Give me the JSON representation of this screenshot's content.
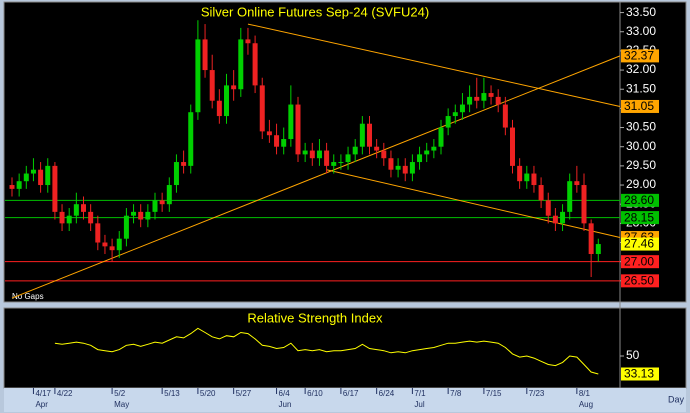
{
  "chart_data": [
    {
      "type": "candlestick",
      "title": "Silver Online Futures Sep-24 (SVFU24)",
      "categories": [
        null,
        null,
        null,
        "4/17",
        null,
        null,
        "4/22",
        null,
        null,
        null,
        null,
        null,
        null,
        null,
        "5/2",
        null,
        null,
        null,
        null,
        null,
        null,
        "5/13",
        null,
        null,
        null,
        null,
        "5/20",
        null,
        null,
        null,
        null,
        "5/27",
        null,
        null,
        null,
        null,
        null,
        "6/4",
        null,
        null,
        null,
        "6/10",
        null,
        null,
        null,
        null,
        "6/17",
        null,
        null,
        null,
        null,
        "6/24",
        null,
        null,
        null,
        null,
        "7/1",
        null,
        null,
        null,
        null,
        "7/8",
        null,
        null,
        null,
        null,
        "7/15",
        null,
        null,
        null,
        null,
        null,
        "7/23",
        null,
        null,
        null,
        null,
        null,
        null,
        "8/1",
        null,
        null,
        null
      ],
      "months": [
        null,
        null,
        null,
        "Apr",
        null,
        null,
        null,
        null,
        null,
        null,
        null,
        null,
        null,
        null,
        "May",
        null,
        null,
        null,
        null,
        null,
        null,
        null,
        null,
        null,
        null,
        null,
        null,
        null,
        null,
        null,
        null,
        null,
        null,
        null,
        null,
        null,
        null,
        "Jun",
        null,
        null,
        null,
        null,
        null,
        null,
        null,
        null,
        null,
        null,
        null,
        null,
        null,
        null,
        null,
        null,
        null,
        null,
        "Jul",
        null,
        null,
        null,
        null,
        null,
        null,
        null,
        null,
        null,
        null,
        null,
        null,
        null,
        null,
        null,
        null,
        null,
        null,
        null,
        null,
        null,
        null,
        "Aug",
        null,
        null,
        null
      ],
      "open": [
        29.0,
        28.9,
        29.1,
        29.3,
        29.4,
        29.0,
        29.5,
        28.3,
        28.0,
        28.2,
        28.5,
        28.3,
        28.0,
        27.5,
        27.4,
        27.3,
        27.6,
        28.2,
        28.3,
        28.1,
        28.3,
        28.6,
        28.5,
        29.0,
        29.6,
        29.5,
        30.9,
        32.8,
        32.0,
        31.2,
        30.8,
        31.6,
        31.5,
        32.8,
        32.7,
        31.6,
        30.4,
        30.3,
        30.0,
        30.2,
        31.1,
        29.8,
        29.9,
        29.7,
        29.9,
        29.5,
        29.6,
        29.6,
        29.8,
        30.0,
        30.6,
        30.0,
        29.9,
        29.7,
        29.4,
        29.5,
        29.3,
        29.6,
        29.8,
        29.9,
        30.0,
        30.5,
        30.8,
        30.9,
        31.1,
        31.3,
        31.2,
        31.4,
        31.3,
        31.1,
        30.5,
        29.5,
        29.1,
        29.3,
        29.0,
        28.6,
        28.2,
        28.0,
        28.3,
        29.1,
        29.0,
        28.0,
        27.2
      ],
      "high": [
        29.2,
        29.3,
        29.5,
        29.7,
        29.6,
        29.7,
        29.6,
        28.5,
        28.4,
        28.8,
        28.7,
        28.5,
        28.2,
        27.7,
        27.6,
        27.8,
        28.4,
        28.5,
        28.5,
        28.5,
        28.8,
        28.8,
        29.2,
        29.8,
        29.9,
        31.1,
        33.3,
        33.2,
        32.4,
        31.5,
        31.9,
        32.0,
        33.1,
        33.1,
        32.9,
        31.8,
        30.7,
        30.6,
        30.5,
        31.6,
        31.3,
        30.1,
        30.1,
        30.2,
        30.1,
        29.8,
        29.8,
        30.0,
        30.2,
        30.8,
        30.8,
        30.2,
        30.1,
        29.9,
        29.7,
        29.7,
        29.8,
        30.0,
        30.1,
        30.2,
        30.7,
        31.0,
        31.1,
        31.4,
        31.6,
        31.8,
        31.8,
        31.6,
        31.5,
        31.3,
        30.7,
        29.7,
        29.5,
        29.5,
        29.2,
        28.8,
        28.4,
        28.5,
        29.3,
        29.5,
        29.3,
        28.1,
        27.6
      ],
      "low": [
        28.7,
        28.7,
        28.9,
        29.1,
        28.8,
        28.8,
        28.1,
        27.8,
        27.8,
        28.0,
        28.1,
        27.8,
        27.3,
        27.2,
        27.0,
        27.1,
        27.4,
        28.0,
        27.9,
        27.9,
        28.1,
        28.3,
        28.3,
        28.8,
        29.3,
        29.3,
        30.7,
        31.8,
        31.0,
        30.6,
        30.6,
        31.2,
        31.3,
        32.4,
        31.4,
        30.2,
        30.1,
        29.8,
        29.8,
        30.0,
        29.6,
        29.6,
        29.5,
        29.5,
        29.3,
        29.3,
        29.4,
        29.4,
        29.6,
        29.8,
        29.8,
        29.7,
        29.5,
        29.2,
        29.2,
        29.1,
        29.1,
        29.4,
        29.6,
        29.7,
        29.8,
        30.3,
        30.6,
        30.7,
        30.9,
        31.0,
        31.0,
        31.1,
        30.9,
        30.3,
        29.3,
        28.9,
        28.9,
        28.8,
        28.4,
        28.0,
        27.8,
        27.8,
        28.1,
        28.8,
        27.8,
        26.6,
        27.0
      ],
      "close": [
        28.9,
        29.1,
        29.3,
        29.4,
        29.0,
        29.5,
        28.3,
        28.0,
        28.2,
        28.5,
        28.3,
        28.0,
        27.5,
        27.4,
        27.3,
        27.6,
        28.2,
        28.3,
        28.1,
        28.3,
        28.6,
        28.5,
        29.0,
        29.6,
        29.5,
        30.9,
        32.8,
        32.0,
        31.2,
        30.8,
        31.6,
        31.5,
        32.8,
        32.7,
        31.6,
        30.4,
        30.3,
        30.0,
        30.2,
        31.1,
        29.8,
        29.9,
        29.7,
        29.9,
        29.5,
        29.6,
        29.6,
        29.8,
        30.0,
        30.6,
        30.0,
        29.9,
        29.7,
        29.4,
        29.5,
        29.3,
        29.6,
        29.8,
        29.9,
        30.0,
        30.5,
        30.8,
        30.9,
        31.1,
        31.3,
        31.2,
        31.4,
        31.3,
        31.1,
        30.5,
        29.5,
        29.1,
        29.3,
        29.0,
        28.6,
        28.2,
        28.0,
        28.3,
        29.1,
        29.0,
        28.0,
        27.2,
        27.46
      ],
      "up_color": "#00d000",
      "down_color": "#ee2222",
      "ylim": [
        26.0,
        33.75
      ],
      "yticks": [
        {
          "value": 26.5,
          "label": "26.50"
        },
        {
          "value": 27,
          "label": "27.00"
        },
        {
          "value": 27.5,
          "label": "27.50"
        },
        {
          "value": 28,
          "label": "28.00"
        },
        {
          "value": 28.5,
          "label": "28.50"
        },
        {
          "value": 29,
          "label": "29.00"
        },
        {
          "value": 29.5,
          "label": "29.50"
        },
        {
          "value": 30,
          "label": "30.00"
        },
        {
          "value": 30.5,
          "label": "30.50"
        },
        {
          "value": 31,
          "label": "31.00"
        },
        {
          "value": 31.5,
          "label": "31.50"
        },
        {
          "value": 32,
          "label": "32.00"
        },
        {
          "value": 32.5,
          "label": "32.50"
        },
        {
          "value": 33,
          "label": "33.00"
        },
        {
          "value": 33.5,
          "label": "33.50"
        }
      ],
      "levels": [
        {
          "value": 28.6,
          "label": "28.60",
          "color": "#00c000"
        },
        {
          "value": 28.15,
          "color": "#00c000"
        },
        {
          "value": 27,
          "label": "27.00",
          "color": "#ff2020"
        },
        {
          "value": 26.5,
          "label": "26.50",
          "color": "#ff2020"
        }
      ],
      "trendlines": [
        {
          "start_index": 33,
          "start_value": 33.2,
          "end_value": 31.05,
          "color": "#ffa500"
        },
        {
          "start_index": 0,
          "start_value": 26.05,
          "end_value": 32.37,
          "color": "#ffa500"
        },
        {
          "start_index": 44,
          "start_value": 29.4,
          "end_value": 27.63,
          "color": "#ffa500"
        }
      ],
      "last_color": "#ffff00",
      "annotation": "No Gaps"
    },
    {
      "type": "line",
      "title": "Relative Strength Index",
      "values": [
        null,
        null,
        null,
        null,
        null,
        null,
        62,
        61,
        62,
        63,
        62,
        60,
        56,
        55,
        54,
        56,
        60,
        61,
        59,
        61,
        63,
        62,
        65,
        68,
        67,
        71,
        76,
        72,
        68,
        66,
        69,
        68,
        72,
        71,
        66,
        60,
        59,
        57,
        58,
        62,
        55,
        56,
        55,
        56,
        54,
        55,
        55,
        56,
        57,
        61,
        57,
        56,
        55,
        53,
        54,
        53,
        55,
        56,
        57,
        58,
        60,
        62,
        62,
        63,
        64,
        63,
        64,
        63,
        62,
        58,
        52,
        49,
        50,
        48,
        45,
        42,
        41,
        44,
        50,
        49,
        42,
        35,
        33.13
      ],
      "color": "#ffff00",
      "ylim": [
        20,
        95
      ],
      "yticks": [
        50
      ],
      "period": "Day"
    }
  ]
}
